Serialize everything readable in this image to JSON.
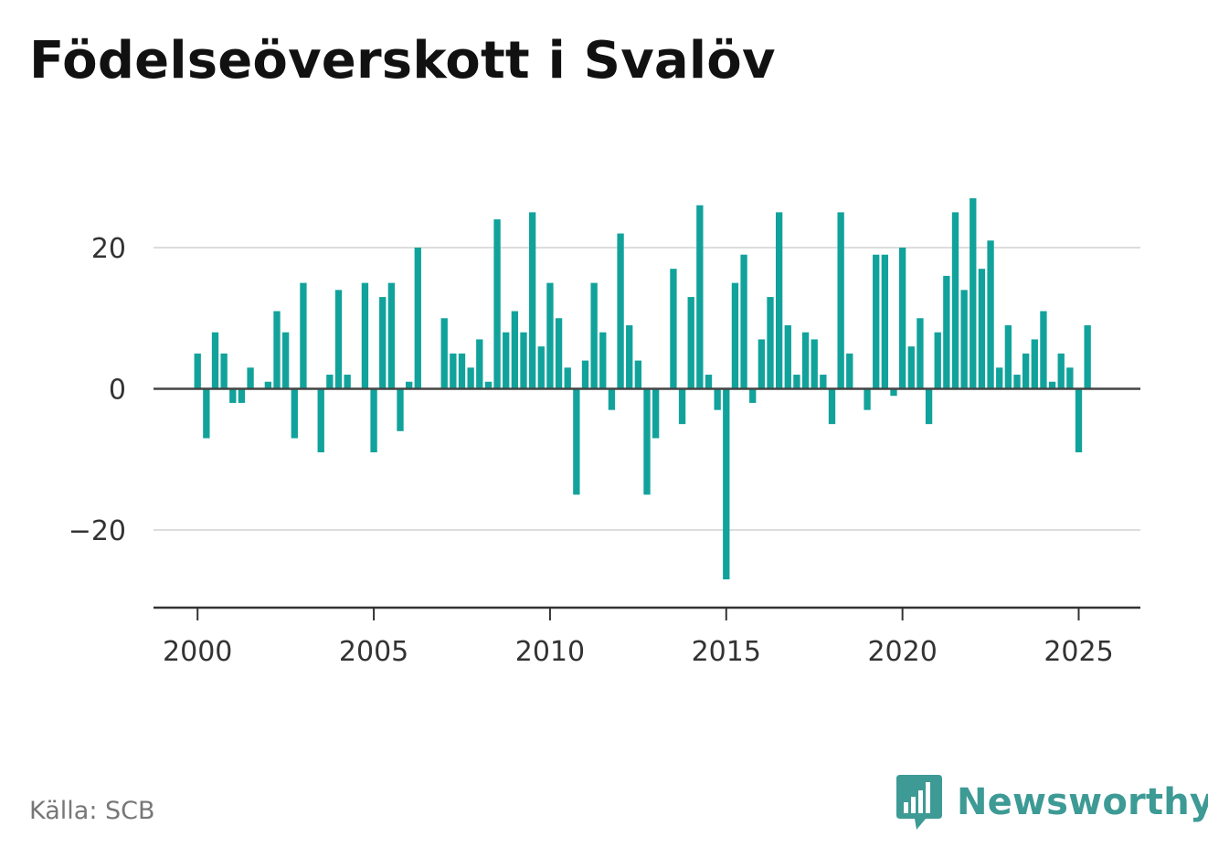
{
  "title": "Födelseöverskott i Svalöv",
  "source": "Källa: SCB",
  "brand": {
    "name": "Newsworthy",
    "icon": "bar-chart-speech-bubble-icon"
  },
  "colors": {
    "bar": "#11a39b",
    "brand": "#3d9a95",
    "grid": "#dddddd",
    "axis": "#333333"
  },
  "chart_data": {
    "type": "bar",
    "title": "Födelseöverskott i Svalöv",
    "xlabel": "",
    "ylabel": "",
    "ylim": [
      -31,
      31
    ],
    "xlim": [
      1998.75,
      2026.75
    ],
    "grid": true,
    "y_ticks": [
      20,
      0,
      -20
    ],
    "y_tick_labels": [
      "20",
      "0",
      "−20"
    ],
    "x_ticks": [
      2000,
      2005,
      2010,
      2015,
      2020,
      2025
    ],
    "x_tick_labels": [
      "2000",
      "2005",
      "2010",
      "2015",
      "2020",
      "2025"
    ],
    "start_year": 2000,
    "frequency": "quarterly",
    "values": [
      5,
      -7,
      8,
      5,
      -2,
      -2,
      3,
      0,
      1,
      11,
      8,
      -7,
      15,
      0,
      -9,
      2,
      14,
      2,
      0,
      15,
      -9,
      13,
      15,
      -6,
      1,
      20,
      0,
      0,
      10,
      5,
      5,
      3,
      7,
      1,
      24,
      8,
      11,
      8,
      25,
      6,
      15,
      10,
      3,
      -15,
      4,
      15,
      8,
      -3,
      22,
      9,
      4,
      -15,
      -7,
      0,
      17,
      -5,
      13,
      26,
      2,
      -3,
      -27,
      15,
      19,
      -2,
      7,
      13,
      25,
      9,
      2,
      8,
      7,
      2,
      -5,
      25,
      5,
      0,
      -3,
      19,
      19,
      -1,
      20,
      6,
      10,
      -5,
      8,
      16,
      25,
      14,
      27,
      17,
      21,
      3,
      9,
      2,
      5,
      7,
      11,
      1,
      5,
      3,
      -9,
      9
    ]
  }
}
